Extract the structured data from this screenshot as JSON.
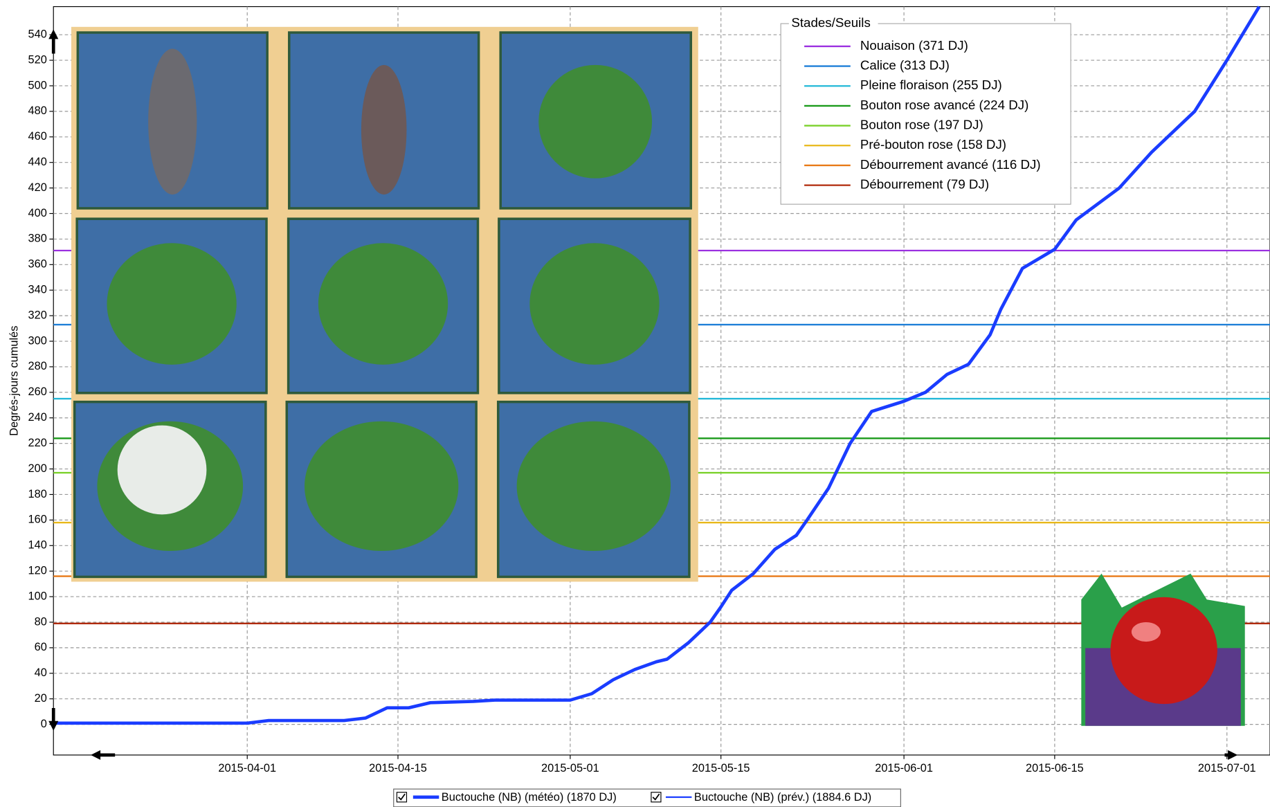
{
  "chart_data": {
    "type": "line",
    "y_label": "Degrés-jours cumulés",
    "ylim": [
      -24,
      562
    ],
    "yticks": [
      0,
      20,
      40,
      60,
      80,
      100,
      120,
      140,
      160,
      180,
      200,
      220,
      240,
      260,
      280,
      300,
      320,
      340,
      360,
      380,
      400,
      420,
      440,
      460,
      480,
      500,
      520,
      540
    ],
    "xlim": [
      "2015-03-14",
      "2015-07-05"
    ],
    "xticks": [
      "2015-04-01",
      "2015-04-15",
      "2015-05-01",
      "2015-05-15",
      "2015-06-01",
      "2015-06-15",
      "2015-07-01"
    ],
    "grid": true,
    "legend_title": "Stades/Seuils",
    "thresholds": [
      {
        "name": "Nouaison (371 DJ)",
        "value": 371,
        "color": "#9b30e0"
      },
      {
        "name": "Calice (313 DJ)",
        "value": 313,
        "color": "#1e7fd8"
      },
      {
        "name": "Pleine floraison (255 DJ)",
        "value": 255,
        "color": "#22b8d8"
      },
      {
        "name": "Bouton rose avancé (224 DJ)",
        "value": 224,
        "color": "#1a9a1a"
      },
      {
        "name": "Bouton rose (197 DJ)",
        "value": 197,
        "color": "#7ad12a"
      },
      {
        "name": "Pré-bouton rose (158 DJ)",
        "value": 158,
        "color": "#e8b818"
      },
      {
        "name": "Débourrement avancé (116 DJ)",
        "value": 116,
        "color": "#e87a18"
      },
      {
        "name": "Débourrement (79 DJ)",
        "value": 79,
        "color": "#b02a0a"
      }
    ],
    "series": [
      {
        "name": "Buctouche (NB) (météo) (1870 DJ)",
        "color": "#1a3cff",
        "x": [
          "2015-03-14",
          "2015-04-01",
          "2015-04-03",
          "2015-04-10",
          "2015-04-12",
          "2015-04-14",
          "2015-04-16",
          "2015-04-18",
          "2015-04-22",
          "2015-04-24",
          "2015-05-01",
          "2015-05-03",
          "2015-05-05",
          "2015-05-07",
          "2015-05-09",
          "2015-05-10",
          "2015-05-12",
          "2015-05-14",
          "2015-05-15",
          "2015-05-16",
          "2015-05-18",
          "2015-05-20",
          "2015-05-22",
          "2015-05-23",
          "2015-05-25",
          "2015-05-27",
          "2015-05-29",
          "2015-06-01",
          "2015-06-03",
          "2015-06-05",
          "2015-06-07",
          "2015-06-09",
          "2015-06-10",
          "2015-06-12",
          "2015-06-15",
          "2015-06-17",
          "2015-06-21",
          "2015-06-24",
          "2015-06-28",
          "2015-07-01",
          "2015-07-04"
        ],
        "values": [
          1,
          1,
          3,
          3,
          5,
          13,
          13,
          17,
          18,
          19,
          19,
          24,
          35,
          43,
          49,
          51,
          64,
          80,
          92,
          105,
          118,
          137,
          148,
          160,
          185,
          220,
          245,
          253,
          260,
          274,
          282,
          305,
          325,
          357,
          372,
          395,
          420,
          448,
          480,
          520,
          562
        ]
      },
      {
        "name": "Buctouche (NB) (prév.) (1884.6 DJ)",
        "color": "#1a3cff"
      }
    ]
  }
}
